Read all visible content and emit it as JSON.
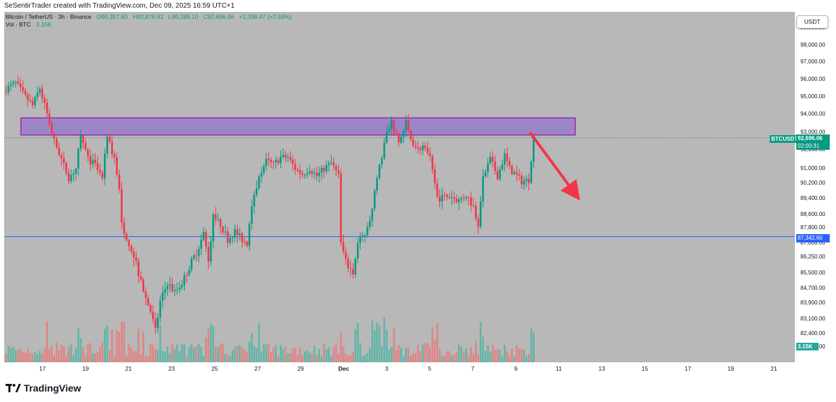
{
  "header": {
    "credit": "SeSentirTrader created with TradingView.com, Dec 09, 2025 16:59 UTC+1"
  },
  "legend": {
    "symbol": "Bitcoin / TetherUS · 3h · Binance",
    "open": "O90,357.60",
    "high": "H92,876.92",
    "low": "L90,288.10",
    "close": "C92,696.06",
    "change": "+2,338.47 (+2.59%)",
    "volume_label": "Vol · BTC",
    "volume_value": "3.15K"
  },
  "currency_button": "USDT",
  "price_axis": {
    "labels": [
      "99,000.00",
      "98,000.00",
      "97,000.00",
      "96,000.00",
      "95,000.00",
      "94,000.00",
      "93,000.00",
      "92,000.00",
      "91,000.00",
      "90,200.00",
      "89,400.00",
      "88,600.00",
      "87,800.00",
      "87,000.00",
      "86,250.00",
      "85,500.00",
      "84,700.00",
      "83,900.00",
      "83,100.00",
      "82,400.00",
      "81,600.00"
    ]
  },
  "time_axis": {
    "labels": [
      "17",
      "19",
      "21",
      "23",
      "25",
      "27",
      "29",
      "Dec",
      "3",
      "5",
      "7",
      "9",
      "11",
      "13",
      "15",
      "17",
      "19",
      "21"
    ]
  },
  "tags": {
    "symbol": "BTCUSDT",
    "last_price": "92,696.06",
    "countdown": "02:00:31",
    "horizontal_line_price": "87,342.60",
    "volume": "3.15K"
  },
  "brand": {
    "name": "TradingView"
  },
  "colors": {
    "background": "#b8b8b8",
    "up": "#089981",
    "down": "#f23645",
    "up_volume": "#5fb6a6",
    "down_volume": "#e08484",
    "zone_fill": "#9c86c8",
    "zone_border": "#9c27b0",
    "horizontal_line": "#2962ff",
    "arrow": "#f23645",
    "price_tag": "#089981"
  },
  "chart_data": {
    "type": "candlestick",
    "symbol": "BTCUSDT",
    "interval": "3h",
    "y_range": [
      81000,
      99600
    ],
    "resistance_zone": [
      92850,
      93800
    ],
    "horizontal_line": 87342.6,
    "last_price": 92696.06,
    "projection": {
      "from": 93000,
      "to": 89300,
      "direction": "down"
    },
    "x_categories": [
      "17",
      "19",
      "21",
      "23",
      "25",
      "27",
      "29",
      "Dec",
      "3",
      "5",
      "7",
      "9",
      "11",
      "13",
      "15",
      "17",
      "19",
      "21"
    ],
    "close_path": [
      [
        0,
        95450
      ],
      [
        4,
        95800
      ],
      [
        8,
        95000
      ],
      [
        11,
        94500
      ],
      [
        14,
        95500
      ],
      [
        17,
        94000
      ],
      [
        20,
        92500
      ],
      [
        23,
        91500
      ],
      [
        26,
        90500
      ],
      [
        29,
        91000
      ],
      [
        31,
        92800
      ],
      [
        34,
        91500
      ],
      [
        37,
        91200
      ],
      [
        40,
        90500
      ],
      [
        42,
        92700
      ],
      [
        45,
        91500
      ],
      [
        47,
        90000
      ],
      [
        48,
        88000
      ],
      [
        51,
        87000
      ],
      [
        54,
        86000
      ],
      [
        57,
        84500
      ],
      [
        60,
        83500
      ],
      [
        62,
        82500
      ],
      [
        64,
        84000
      ],
      [
        67,
        85000
      ],
      [
        70,
        84500
      ],
      [
        73,
        85000
      ],
      [
        76,
        85800
      ],
      [
        79,
        86500
      ],
      [
        82,
        87500
      ],
      [
        84,
        86000
      ],
      [
        86,
        88500
      ],
      [
        89,
        88000
      ],
      [
        92,
        87200
      ],
      [
        95,
        87600
      ],
      [
        98,
        87200
      ],
      [
        100,
        87000
      ],
      [
        102,
        89200
      ],
      [
        105,
        90600
      ],
      [
        108,
        91400
      ],
      [
        111,
        91200
      ],
      [
        114,
        91600
      ],
      [
        117,
        91600
      ],
      [
        120,
        91000
      ],
      [
        123,
        90700
      ],
      [
        126,
        91000
      ],
      [
        129,
        90600
      ],
      [
        132,
        91000
      ],
      [
        135,
        91300
      ],
      [
        138,
        90600
      ],
      [
        139,
        87000
      ],
      [
        141,
        86000
      ],
      [
        144,
        85500
      ],
      [
        146,
        87000
      ],
      [
        149,
        87500
      ],
      [
        152,
        88800
      ],
      [
        154,
        90500
      ],
      [
        156,
        91700
      ],
      [
        158,
        93000
      ],
      [
        160,
        93500
      ],
      [
        163,
        92400
      ],
      [
        166,
        93500
      ],
      [
        168,
        92600
      ],
      [
        171,
        92000
      ],
      [
        173,
        92200
      ],
      [
        176,
        91500
      ],
      [
        177,
        90800
      ],
      [
        179,
        89400
      ],
      [
        182,
        89500
      ],
      [
        185,
        89500
      ],
      [
        188,
        89300
      ],
      [
        191,
        89600
      ],
      [
        194,
        89000
      ],
      [
        196,
        88000
      ],
      [
        198,
        90500
      ],
      [
        201,
        91500
      ],
      [
        204,
        90600
      ],
      [
        207,
        91700
      ],
      [
        209,
        91000
      ],
      [
        212,
        90600
      ],
      [
        214,
        90300
      ],
      [
        217,
        90400
      ],
      [
        219,
        92700
      ]
    ]
  }
}
